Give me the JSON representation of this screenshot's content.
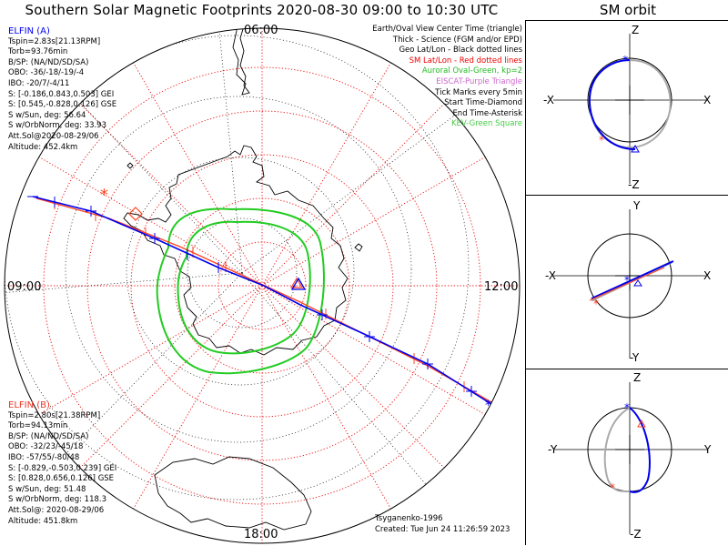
{
  "title": "Southern Solar Magnetic Footprints 2020-08-30 09:00 to 10:30 UTC",
  "orbit_title": "SM orbit",
  "hour_labels": {
    "top": "06:00",
    "left": "09:00",
    "right": "12:00",
    "bottom": "18:00"
  },
  "elfin_a": {
    "name": "ELFIN (A)",
    "color": "#0000ee",
    "lines": [
      "Tspin=2.83s[21.13RPM]",
      "Torb=93.76min",
      "B/SP: (NA/ND/SD/SA)",
      "OBO: -36/-18/-19/-4",
      "IBO: -20/7/-4/11",
      "S: [-0.186,0.843,0.503] GEI",
      "S: [0.545,-0.828,0.126] GSE",
      "S w/Sun, deg: 56.64",
      "S w/OrbNorm, deg: 33.93",
      "Att.Sol@2020-08-29/06",
      "Altitude: 452.4km"
    ]
  },
  "elfin_b": {
    "name": "ELFIN (B)",
    "color": "#ee3322",
    "lines": [
      "Tspin=2.80s[21.38RPM]",
      "Torb=94.13min",
      "B/SP: (NA/ND/SD/SA)",
      "OBO: -32/23/-45/18",
      "IBO: -57/55/-80/48",
      "S: [-0.829,-0.503,0.239] GEI",
      "S: [0.828,0.656,0.126] GSE",
      "S w/Sun, deg: 51.48",
      "S w/OrbNorm, deg: 118.3",
      "Att.Sol@: 2020-08-29/06",
      "Altitude: 451.8km"
    ]
  },
  "legend": [
    {
      "text": "Earth/Oval View Center Time (triangle)",
      "color": "#000000"
    },
    {
      "text": "Thick - Science (FGM and/or EPD)",
      "color": "#000000"
    },
    {
      "text": "Geo Lat/Lon - Black dotted lines",
      "color": "#000000"
    },
    {
      "text": "SM Lat/Lon - Red dotted lines",
      "color": "#ee0000"
    },
    {
      "text": "Auroral Oval-Green, kp=2",
      "color": "#22bb22"
    },
    {
      "text": "EISCAT-Purple Triangle",
      "color": "#cc66cc"
    },
    {
      "text": "Tick Marks every 5min",
      "color": "#000000"
    },
    {
      "text": "Start Time-Diamond",
      "color": "#000000"
    },
    {
      "text": "End Time-Asterisk",
      "color": "#000000"
    },
    {
      "text": "KEV-Green Square",
      "color": "#44cc44"
    }
  ],
  "credits": {
    "author": "Tsyganenko-1996",
    "created": "Created: Tue Jun 24 11:26:59 2023"
  },
  "orbit_panels": [
    {
      "top": "Z",
      "bottom": "-Z",
      "left": "-X",
      "right": "X"
    },
    {
      "top": "Y",
      "bottom": "-Y",
      "left": "-X",
      "right": "X"
    },
    {
      "top": "Z",
      "bottom": "-Z",
      "left": "-Y",
      "right": "Y"
    }
  ],
  "colors": {
    "elfin_a": "#0000ee",
    "elfin_b": "#ff4422",
    "oval": "#22cc22",
    "sm_grid": "#ee0000",
    "geo_grid": "#000000"
  }
}
